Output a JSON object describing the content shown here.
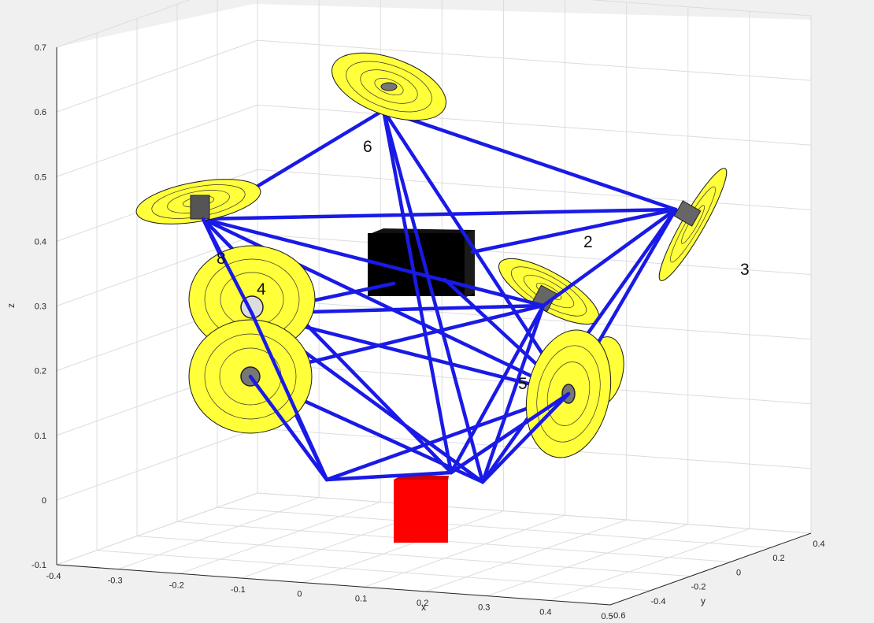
{
  "chart_data": {
    "type": "3d-plot",
    "xlabel": "x",
    "ylabel": "y",
    "zlabel": "z",
    "x_ticks": [
      "-0.4",
      "-0.3",
      "-0.2",
      "-0.1",
      "0",
      "0.1",
      "0.2",
      "0.3",
      "0.4",
      "0.5"
    ],
    "y_ticks": [
      "-0.6",
      "-0.4",
      "-0.2",
      "0",
      "0.2",
      "0.4"
    ],
    "z_ticks": [
      "-0.1",
      "0",
      "0.1",
      "0.2",
      "0.3",
      "0.4",
      "0.5",
      "0.6",
      "0.7"
    ],
    "xlim": [
      -0.4,
      0.5
    ],
    "ylim": [
      -0.6,
      0.4
    ],
    "zlim": [
      -0.1,
      0.7
    ],
    "grid": true,
    "node_labels": [
      "6",
      "2",
      "3",
      "4",
      "8",
      "5"
    ],
    "colors": {
      "cables": "#1a1ae6",
      "rotor_discs": "#ffff3a",
      "payload_box": "#000000",
      "ground_box": "#ff0000",
      "background": "#ffffff"
    }
  }
}
